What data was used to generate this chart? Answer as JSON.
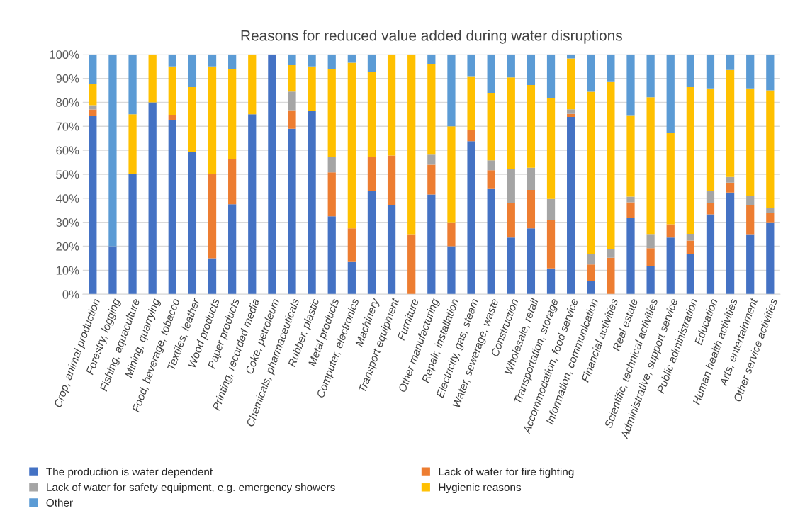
{
  "chart_data": {
    "type": "bar",
    "stacked": true,
    "title": "Reasons for reduced value added during water disruptions",
    "categories": [
      "Crop, animal production",
      "Forestry, logging",
      "Fishing, aquaculture",
      "Mining, quarrying",
      "Food, beverage, tobacco",
      "Textiles, leather",
      "Wood products",
      "Paper products",
      "Printing, recorded media",
      "Coke, petroleum",
      "Chemicals, pharmaceuticals",
      "Rubber, plastic",
      "Metal products",
      "Computer, electronics",
      "Machinery",
      "Transport equipment",
      "Furniture",
      "Other manufacturing",
      "Repair, installation",
      "Electricity, gas, steam",
      "Water, sewerage, waste",
      "Construction",
      "Wholesale, retail",
      "Transportation, storage",
      "Accommodation, food service",
      "Information, communication",
      "Financial activities",
      "Real estate",
      "Scientific, technical activities",
      "Administrative, support service",
      "Public administration",
      "Education",
      "Human health activities",
      "Arts, entertainment",
      "Other service activities"
    ],
    "series": [
      {
        "name": "The production is water dependent",
        "color": "#4472c4",
        "values": [
          74.2,
          20,
          50,
          80,
          72.5,
          59.2,
          15,
          37.5,
          75,
          100,
          69,
          76.3,
          32.5,
          13.4,
          43.2,
          37.1,
          0,
          41.6,
          20,
          63.8,
          43.9,
          23.6,
          27.5,
          10.8,
          73.9,
          5.6,
          0,
          31.9,
          11.8,
          23.6,
          16.6,
          33.3,
          42.4,
          25,
          30
        ]
      },
      {
        "name": "Lack of water for fire fighting",
        "color": "#ed7d31",
        "values": [
          2.8,
          0,
          0,
          0,
          2.3,
          0,
          35,
          18.8,
          0,
          0,
          7.7,
          0,
          18.3,
          14.1,
          14.2,
          20.7,
          25,
          12.4,
          10,
          4.6,
          7.8,
          14.3,
          16,
          20.1,
          1.3,
          6.8,
          15.2,
          6.4,
          7.4,
          5.6,
          5.8,
          4.6,
          4.1,
          12.3,
          3.8
        ]
      },
      {
        "name": "Lack of water for safety equipment, e.g. emergency showers",
        "color": "#a5a5a5",
        "values": [
          1.8,
          0,
          0,
          0,
          0,
          0,
          0,
          0,
          0,
          0,
          7.8,
          0,
          6.4,
          0,
          0,
          0,
          0,
          4.2,
          0,
          0,
          4.1,
          14.3,
          9.2,
          8.8,
          1.9,
          4.2,
          3.8,
          2.4,
          5.9,
          0,
          2.8,
          5,
          2.4,
          3.7,
          2.2
        ]
      },
      {
        "name": "Hygienic reasons",
        "color": "#ffc000",
        "values": [
          8.7,
          0,
          25,
          20,
          20.2,
          27.1,
          45,
          37.4,
          25,
          0,
          11,
          18.7,
          36.8,
          69,
          35.2,
          42.2,
          75,
          37.7,
          40,
          22.5,
          28.2,
          38.2,
          34.5,
          42,
          21.2,
          67.8,
          69.5,
          34,
          57,
          38.2,
          61.1,
          42.9,
          44.6,
          44.8,
          49
        ]
      },
      {
        "name": "Other",
        "color": "#5b9bd5",
        "values": [
          12.5,
          80,
          25,
          0,
          5,
          13.7,
          5,
          6.3,
          0,
          0,
          4.5,
          5,
          6,
          3.5,
          7.4,
          0,
          0,
          4.1,
          30,
          9.1,
          16,
          9.6,
          12.8,
          18.3,
          1.7,
          15.6,
          11.5,
          25.3,
          17.9,
          32.6,
          13.7,
          14.2,
          6.5,
          14.2,
          15
        ]
      }
    ],
    "ylim": [
      0,
      100
    ],
    "yticks": [
      {
        "value": 0,
        "label": "0%"
      },
      {
        "value": 10,
        "label": "10%"
      },
      {
        "value": 20,
        "label": "20%"
      },
      {
        "value": 30,
        "label": "30%"
      },
      {
        "value": 40,
        "label": "40%"
      },
      {
        "value": 50,
        "label": "50%"
      },
      {
        "value": 60,
        "label": "60%"
      },
      {
        "value": 70,
        "label": "70%"
      },
      {
        "value": 80,
        "label": "80%"
      },
      {
        "value": 90,
        "label": "90%"
      },
      {
        "value": 100,
        "label": "100%"
      }
    ],
    "grid": "y",
    "legend": "bottom"
  }
}
